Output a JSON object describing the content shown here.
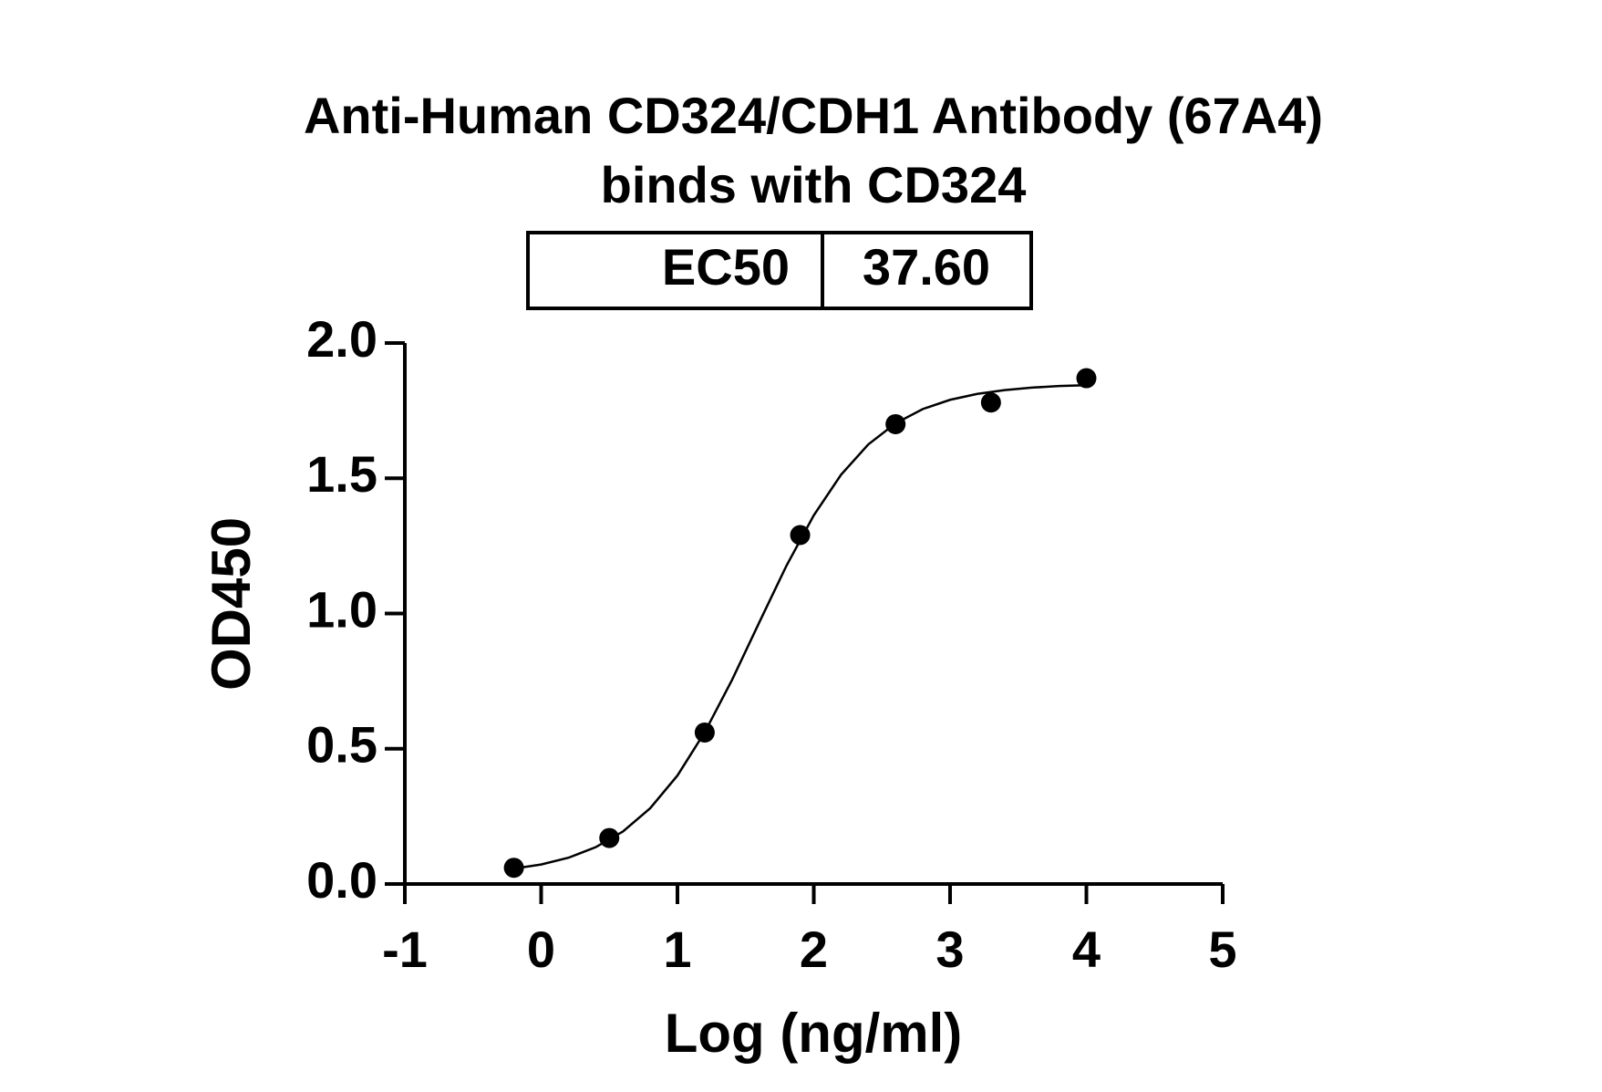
{
  "chart_data": {
    "type": "scatter",
    "title": [
      "Anti-Human CD324/CDH1 Antibody (67A4)",
      "binds with CD324"
    ],
    "annotation": {
      "label": "EC50",
      "value": "37.60"
    },
    "x_label": "Log (ng/ml)",
    "y_label": "OD450",
    "xlim": [
      -1,
      5
    ],
    "xticks": [
      -1,
      0,
      1,
      2,
      3,
      4,
      5
    ],
    "ylim": [
      0,
      2
    ],
    "yticks": [
      {
        "value": 0,
        "label": "0.0"
      },
      {
        "value": 0.5,
        "label": "0.5"
      },
      {
        "value": 1,
        "label": "1.0"
      },
      {
        "value": 1.5,
        "label": "1.5"
      },
      {
        "value": 2,
        "label": "2.0"
      }
    ],
    "color": "#000000",
    "series": [
      {
        "type": "scatter",
        "x": [
          -0.2,
          0.5,
          1.2,
          1.9,
          2.6,
          3.3,
          4.0
        ],
        "values": [
          0.06,
          0.17,
          0.56,
          1.29,
          1.7,
          1.78,
          1.87
        ]
      },
      {
        "type": "line",
        "x": [
          -0.2,
          0.0,
          0.2,
          0.4,
          0.6,
          0.8,
          1.0,
          1.2,
          1.4,
          1.6,
          1.8,
          2.0,
          2.2,
          2.4,
          2.6,
          2.8,
          3.0,
          3.2,
          3.4,
          3.6,
          3.8,
          4.0
        ],
        "values": [
          0.057,
          0.072,
          0.097,
          0.136,
          0.194,
          0.28,
          0.401,
          0.561,
          0.754,
          0.967,
          1.177,
          1.363,
          1.513,
          1.625,
          1.703,
          1.756,
          1.79,
          1.812,
          1.826,
          1.835,
          1.841,
          1.844
        ]
      }
    ]
  }
}
